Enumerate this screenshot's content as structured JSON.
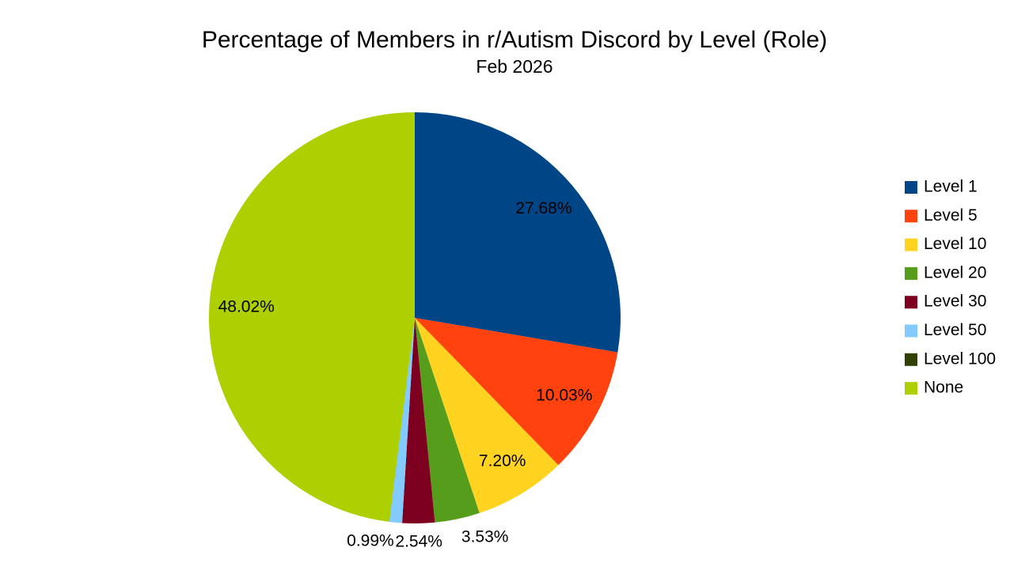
{
  "chart_data": {
    "type": "pie",
    "title": "Percentage of Members in r/Autism Discord by Level (Role)",
    "subtitle": "Feb 2026",
    "categories": [
      "Level 1",
      "Level 5",
      "Level 10",
      "Level 20",
      "Level 30",
      "Level 50",
      "Level 100",
      "None"
    ],
    "values": [
      27.68,
      10.03,
      7.2,
      3.53,
      2.54,
      0.99,
      0.01,
      48.02
    ],
    "value_labels": [
      "27.68%",
      "10.03%",
      "7.20%",
      "3.53%",
      "2.54%",
      "0.99%",
      null,
      "48.02%"
    ],
    "colors": [
      "#004586",
      "#ff420e",
      "#ffd320",
      "#579d1c",
      "#7e0021",
      "#83caff",
      "#314004",
      "#aecf00"
    ],
    "legend": "right"
  }
}
